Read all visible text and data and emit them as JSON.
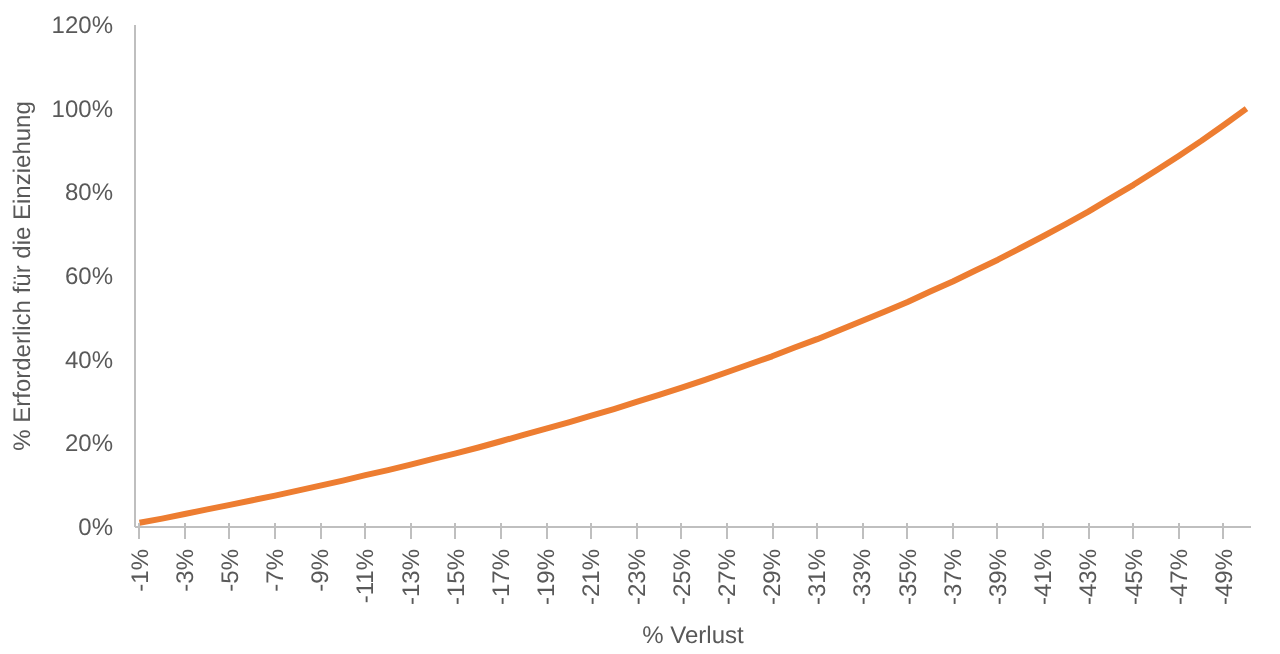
{
  "chart_data": {
    "type": "line",
    "xlabel": "% Verlust",
    "ylabel": "% Erforderlich für die Einziehung",
    "categories": [
      "-1%",
      null,
      "-3%",
      null,
      "-5%",
      null,
      "-7%",
      null,
      "-9%",
      null,
      "-11%",
      null,
      "-13%",
      null,
      "-15%",
      null,
      "-17%",
      null,
      "-19%",
      null,
      "-21%",
      null,
      "-23%",
      null,
      "-25%",
      null,
      "-27%",
      null,
      "-29%",
      null,
      "-31%",
      null,
      "-33%",
      null,
      "-35%",
      null,
      "-37%",
      null,
      "-39%",
      null,
      "-41%",
      null,
      "-43%",
      null,
      "-45%",
      null,
      "-47%",
      null,
      "-49%",
      null
    ],
    "series": [
      {
        "color": "#ed7d31",
        "values": [
          1.0,
          2.0,
          3.1,
          4.2,
          5.3,
          6.4,
          7.5,
          8.7,
          9.9,
          11.1,
          12.4,
          13.6,
          14.9,
          16.3,
          17.6,
          19.0,
          20.5,
          22.0,
          23.5,
          25.0,
          26.6,
          28.2,
          29.9,
          31.6,
          33.3,
          35.1,
          37.0,
          38.9,
          40.8,
          42.9,
          44.9,
          47.1,
          49.3,
          51.5,
          53.8,
          56.3,
          58.7,
          61.3,
          63.9,
          66.7,
          69.5,
          72.4,
          75.4,
          78.6,
          81.8,
          85.2,
          88.7,
          92.3,
          96.1,
          100.0
        ]
      }
    ],
    "ylim": [
      0,
      120
    ],
    "yticks": [
      {
        "value": 0,
        "label": "0%"
      },
      {
        "value": 20,
        "label": "20%"
      },
      {
        "value": 40,
        "label": "40%"
      },
      {
        "value": 60,
        "label": "60%"
      },
      {
        "value": 80,
        "label": "80%"
      },
      {
        "value": 100,
        "label": "100%"
      },
      {
        "value": 120,
        "label": "120%"
      }
    ],
    "grid": false,
    "marker": "none",
    "line_style": "solid"
  }
}
